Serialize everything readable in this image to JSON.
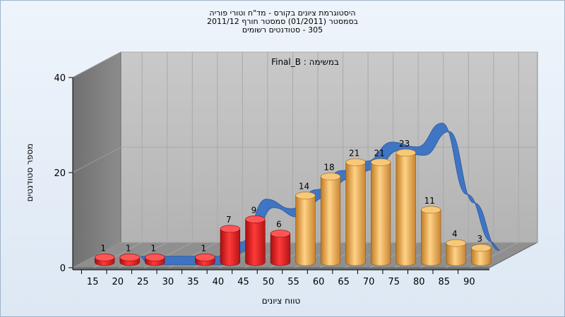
{
  "chart_data": {
    "type": "bar",
    "title_lines": [
      "היסטוגרמת ציונים בקורס - מד\"ח וטורי פוריה",
      "בסמסטר (01/2011) סמסטר חורף 2011/12",
      "305 - סטודנטים רשומים"
    ],
    "annotation": "במשימה : Final_B",
    "xlabel": "טווח ציונים",
    "ylabel": "מספר סטודנטים",
    "ylim": [
      0,
      40
    ],
    "yticks": [
      "0",
      "20",
      "40"
    ],
    "categories": [
      "15",
      "20",
      "25",
      "30",
      "35",
      "40",
      "45",
      "50",
      "55",
      "60",
      "65",
      "70",
      "75",
      "80",
      "85",
      "90"
    ],
    "values": [
      1,
      1,
      1,
      null,
      1,
      7,
      9,
      6,
      14,
      18,
      21,
      21,
      23,
      11,
      4,
      3
    ],
    "bar_colors": [
      "#e02020",
      "#e02020",
      "#e02020",
      null,
      "#e02020",
      "#e02020",
      "#e02020",
      "#e02020",
      "#e8a848",
      "#e8a848",
      "#e8a848",
      "#e8a848",
      "#e8a848",
      "#e8a848",
      "#e8a848",
      "#e8a848"
    ],
    "series": [
      {
        "type": "bar",
        "values": [
          1,
          1,
          1,
          null,
          1,
          7,
          9,
          6,
          14,
          18,
          21,
          21,
          23,
          11,
          4,
          3
        ]
      },
      {
        "type": "line",
        "values": [
          null,
          0,
          0,
          0,
          0,
          3,
          12,
          10,
          14,
          18,
          20,
          24,
          23,
          28,
          13,
          3
        ]
      }
    ],
    "colors": {
      "fail_bar": "#e02020",
      "pass_bar": "#e8a848",
      "line": "#3a72c4"
    },
    "grid": true
  }
}
